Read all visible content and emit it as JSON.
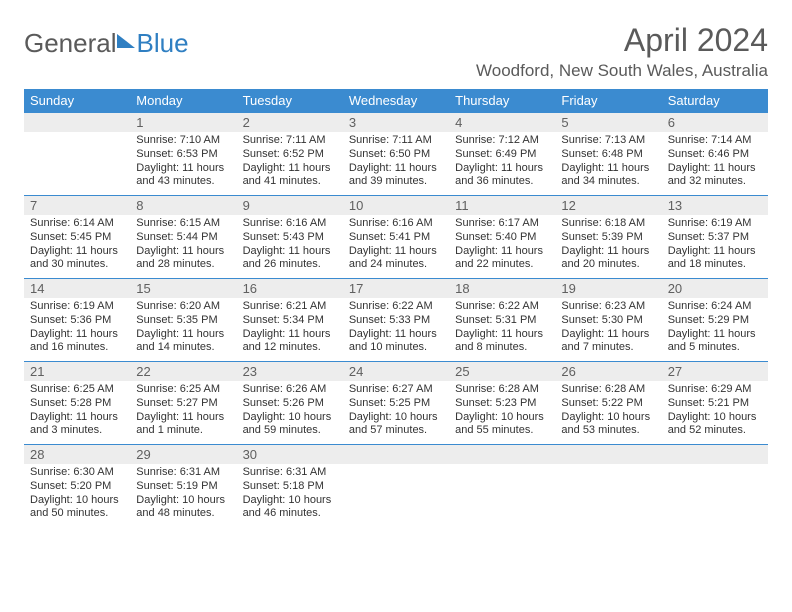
{
  "logo": {
    "text1": "General",
    "text2": "Blue"
  },
  "title": "April 2024",
  "location": "Woodford, New South Wales, Australia",
  "colors": {
    "header_bg": "#3b8bd0",
    "header_text": "#ffffff",
    "daynum_bg": "#ededed",
    "daynum_text": "#606060",
    "body_text": "#333333",
    "title_text": "#5a5a5a",
    "logo_blue": "#2f7fc2",
    "border": "#3b8bd0"
  },
  "day_headers": [
    "Sunday",
    "Monday",
    "Tuesday",
    "Wednesday",
    "Thursday",
    "Friday",
    "Saturday"
  ],
  "weeks": [
    [
      null,
      {
        "n": "1",
        "sr": "Sunrise: 7:10 AM",
        "ss": "Sunset: 6:53 PM",
        "dl": "Daylight: 11 hours and 43 minutes."
      },
      {
        "n": "2",
        "sr": "Sunrise: 7:11 AM",
        "ss": "Sunset: 6:52 PM",
        "dl": "Daylight: 11 hours and 41 minutes."
      },
      {
        "n": "3",
        "sr": "Sunrise: 7:11 AM",
        "ss": "Sunset: 6:50 PM",
        "dl": "Daylight: 11 hours and 39 minutes."
      },
      {
        "n": "4",
        "sr": "Sunrise: 7:12 AM",
        "ss": "Sunset: 6:49 PM",
        "dl": "Daylight: 11 hours and 36 minutes."
      },
      {
        "n": "5",
        "sr": "Sunrise: 7:13 AM",
        "ss": "Sunset: 6:48 PM",
        "dl": "Daylight: 11 hours and 34 minutes."
      },
      {
        "n": "6",
        "sr": "Sunrise: 7:14 AM",
        "ss": "Sunset: 6:46 PM",
        "dl": "Daylight: 11 hours and 32 minutes."
      }
    ],
    [
      {
        "n": "7",
        "sr": "Sunrise: 6:14 AM",
        "ss": "Sunset: 5:45 PM",
        "dl": "Daylight: 11 hours and 30 minutes."
      },
      {
        "n": "8",
        "sr": "Sunrise: 6:15 AM",
        "ss": "Sunset: 5:44 PM",
        "dl": "Daylight: 11 hours and 28 minutes."
      },
      {
        "n": "9",
        "sr": "Sunrise: 6:16 AM",
        "ss": "Sunset: 5:43 PM",
        "dl": "Daylight: 11 hours and 26 minutes."
      },
      {
        "n": "10",
        "sr": "Sunrise: 6:16 AM",
        "ss": "Sunset: 5:41 PM",
        "dl": "Daylight: 11 hours and 24 minutes."
      },
      {
        "n": "11",
        "sr": "Sunrise: 6:17 AM",
        "ss": "Sunset: 5:40 PM",
        "dl": "Daylight: 11 hours and 22 minutes."
      },
      {
        "n": "12",
        "sr": "Sunrise: 6:18 AM",
        "ss": "Sunset: 5:39 PM",
        "dl": "Daylight: 11 hours and 20 minutes."
      },
      {
        "n": "13",
        "sr": "Sunrise: 6:19 AM",
        "ss": "Sunset: 5:37 PM",
        "dl": "Daylight: 11 hours and 18 minutes."
      }
    ],
    [
      {
        "n": "14",
        "sr": "Sunrise: 6:19 AM",
        "ss": "Sunset: 5:36 PM",
        "dl": "Daylight: 11 hours and 16 minutes."
      },
      {
        "n": "15",
        "sr": "Sunrise: 6:20 AM",
        "ss": "Sunset: 5:35 PM",
        "dl": "Daylight: 11 hours and 14 minutes."
      },
      {
        "n": "16",
        "sr": "Sunrise: 6:21 AM",
        "ss": "Sunset: 5:34 PM",
        "dl": "Daylight: 11 hours and 12 minutes."
      },
      {
        "n": "17",
        "sr": "Sunrise: 6:22 AM",
        "ss": "Sunset: 5:33 PM",
        "dl": "Daylight: 11 hours and 10 minutes."
      },
      {
        "n": "18",
        "sr": "Sunrise: 6:22 AM",
        "ss": "Sunset: 5:31 PM",
        "dl": "Daylight: 11 hours and 8 minutes."
      },
      {
        "n": "19",
        "sr": "Sunrise: 6:23 AM",
        "ss": "Sunset: 5:30 PM",
        "dl": "Daylight: 11 hours and 7 minutes."
      },
      {
        "n": "20",
        "sr": "Sunrise: 6:24 AM",
        "ss": "Sunset: 5:29 PM",
        "dl": "Daylight: 11 hours and 5 minutes."
      }
    ],
    [
      {
        "n": "21",
        "sr": "Sunrise: 6:25 AM",
        "ss": "Sunset: 5:28 PM",
        "dl": "Daylight: 11 hours and 3 minutes."
      },
      {
        "n": "22",
        "sr": "Sunrise: 6:25 AM",
        "ss": "Sunset: 5:27 PM",
        "dl": "Daylight: 11 hours and 1 minute."
      },
      {
        "n": "23",
        "sr": "Sunrise: 6:26 AM",
        "ss": "Sunset: 5:26 PM",
        "dl": "Daylight: 10 hours and 59 minutes."
      },
      {
        "n": "24",
        "sr": "Sunrise: 6:27 AM",
        "ss": "Sunset: 5:25 PM",
        "dl": "Daylight: 10 hours and 57 minutes."
      },
      {
        "n": "25",
        "sr": "Sunrise: 6:28 AM",
        "ss": "Sunset: 5:23 PM",
        "dl": "Daylight: 10 hours and 55 minutes."
      },
      {
        "n": "26",
        "sr": "Sunrise: 6:28 AM",
        "ss": "Sunset: 5:22 PM",
        "dl": "Daylight: 10 hours and 53 minutes."
      },
      {
        "n": "27",
        "sr": "Sunrise: 6:29 AM",
        "ss": "Sunset: 5:21 PM",
        "dl": "Daylight: 10 hours and 52 minutes."
      }
    ],
    [
      {
        "n": "28",
        "sr": "Sunrise: 6:30 AM",
        "ss": "Sunset: 5:20 PM",
        "dl": "Daylight: 10 hours and 50 minutes."
      },
      {
        "n": "29",
        "sr": "Sunrise: 6:31 AM",
        "ss": "Sunset: 5:19 PM",
        "dl": "Daylight: 10 hours and 48 minutes."
      },
      {
        "n": "30",
        "sr": "Sunrise: 6:31 AM",
        "ss": "Sunset: 5:18 PM",
        "dl": "Daylight: 10 hours and 46 minutes."
      },
      null,
      null,
      null,
      null
    ]
  ]
}
